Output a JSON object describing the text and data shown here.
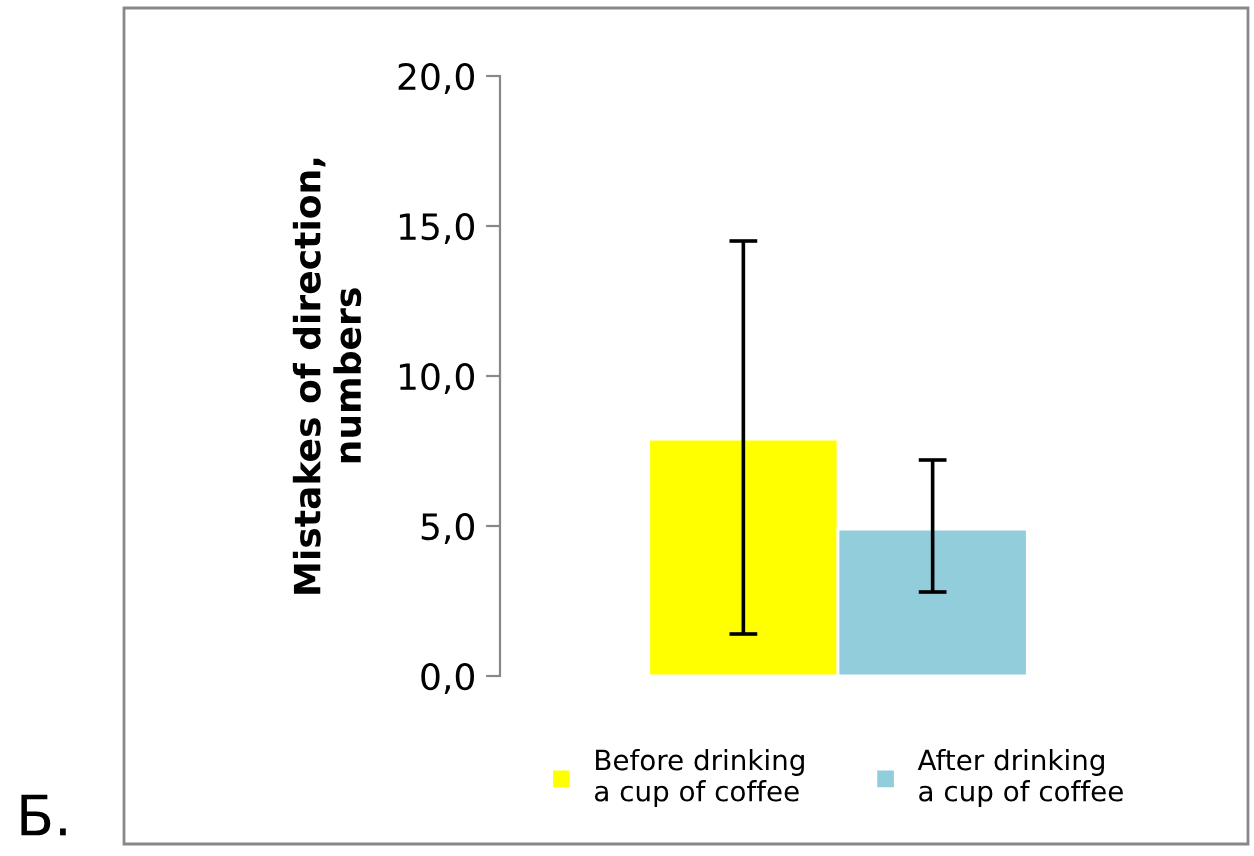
{
  "chart_data": {
    "type": "bar",
    "ylabel": "Mistakes of direction,\nnumbers",
    "categories": [
      null
    ],
    "series": [
      {
        "name": "Before drinking\na cup of coffee",
        "color": "#ffff00",
        "values": [
          7.9
        ],
        "errors": [
          [
            1.4,
            14.5
          ]
        ]
      },
      {
        "name": "After drinking\na cup of coffee",
        "color": "#92cddc",
        "values": [
          4.9
        ],
        "errors": [
          [
            2.8,
            7.2
          ]
        ]
      }
    ],
    "ylim": [
      0,
      20
    ],
    "yticks": [
      {
        "value": 0,
        "label": "0,0"
      },
      {
        "value": 5,
        "label": "5,0"
      },
      {
        "value": 10,
        "label": "10,0"
      },
      {
        "value": 15,
        "label": "15,0"
      },
      {
        "value": 20,
        "label": "20,0"
      }
    ],
    "tick_labels": "y",
    "grid": false,
    "legend": "bottom",
    "annotations": [
      "Б."
    ]
  }
}
